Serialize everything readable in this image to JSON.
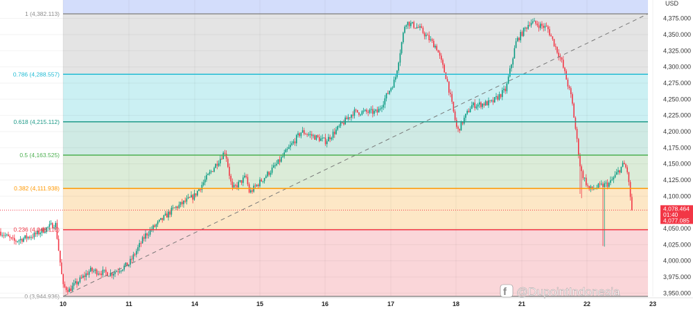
{
  "chart_data": {
    "type": "candlestick",
    "currency_label": "USD",
    "x_ticks": [
      "10",
      "11",
      "14",
      "15",
      "16",
      "17",
      "18",
      "21",
      "22",
      "23"
    ],
    "y_ticks": [
      "4,375.000",
      "4,350.000",
      "4,325.000",
      "4,300.000",
      "4,275.000",
      "4,250.000",
      "4,225.000",
      "4,200.000",
      "4,175.000",
      "4,150.000",
      "4,125.000",
      "4,100.000",
      "4,050.000",
      "4,025.000",
      "4,000.000",
      "3,975.000",
      "3,950.000"
    ],
    "y_tick_values": [
      4375,
      4350,
      4325,
      4300,
      4275,
      4250,
      4225,
      4200,
      4175,
      4150,
      4125,
      4100,
      4050,
      4025,
      4000,
      3975,
      3950
    ],
    "ylim": [
      3944.936,
      4382.113
    ],
    "grid": true,
    "approx_close_path": [
      [
        "9",
        4045
      ],
      [
        "9",
        4030
      ],
      [
        "9",
        4040
      ],
      [
        "9",
        4058
      ],
      [
        "10",
        3960
      ],
      [
        "10",
        3955
      ],
      [
        "10",
        3985
      ],
      [
        "10",
        3980
      ],
      [
        "11",
        3995
      ],
      [
        "11",
        4040
      ],
      [
        "11",
        4080
      ],
      [
        "14",
        4100
      ],
      [
        "14",
        4170
      ],
      [
        "14",
        4110
      ],
      [
        "14",
        4130
      ],
      [
        "14",
        4105
      ],
      [
        "15",
        4150
      ],
      [
        "15",
        4200
      ],
      [
        "16",
        4185
      ],
      [
        "16",
        4230
      ],
      [
        "16",
        4230
      ],
      [
        "17",
        4280
      ],
      [
        "17",
        4370
      ],
      [
        "17",
        4360
      ],
      [
        "17",
        4330
      ],
      [
        "17",
        4280
      ],
      [
        "18",
        4200
      ],
      [
        "18",
        4240
      ],
      [
        "18",
        4245
      ],
      [
        "18",
        4265
      ],
      [
        "18",
        4340
      ],
      [
        "21",
        4370
      ],
      [
        "21",
        4360
      ],
      [
        "21",
        4310
      ],
      [
        "21",
        4250
      ],
      [
        "21",
        4140
      ],
      [
        "22",
        4110
      ],
      [
        "22",
        4120
      ],
      [
        "22",
        4150
      ],
      [
        "22",
        4140
      ],
      [
        "22",
        4078
      ]
    ],
    "fibonacci": {
      "levels": [
        {
          "label": "1 (4,382.113)",
          "ratio": 1,
          "price": 4382.113,
          "color": "#8c8c8c",
          "fill": "#e4e4e4"
        },
        {
          "label": "0.786 (4,288.557)",
          "ratio": 0.786,
          "price": 4288.557,
          "color": "#22bcd4",
          "fill": "#cbf0f3"
        },
        {
          "label": "0.618 (4,215.112)",
          "ratio": 0.618,
          "price": 4215.112,
          "color": "#1e9a88",
          "fill": "#cfeae4"
        },
        {
          "label": "0.5 (4,163.525)",
          "ratio": 0.5,
          "price": 4163.525,
          "color": "#4caf50",
          "fill": "#dbecd8"
        },
        {
          "label": "0.382 (4,111.938)",
          "ratio": 0.382,
          "price": 4111.938,
          "color": "#ff9800",
          "fill": "#fde7c6"
        },
        {
          "label": "0.236 (4,048.110)",
          "ratio": 0.236,
          "price": 4048.11,
          "color": "#f23645",
          "fill": "#fad6d9"
        },
        {
          "label": "0 (3,944.936)",
          "ratio": 0,
          "price": 3944.936,
          "color": "#8c8c8c",
          "fill": "#fad6d9"
        }
      ],
      "above_fill": "#d3ddfb"
    },
    "last_price": {
      "price": "4,078.464",
      "countdown": "01:40",
      "second": "4,077.085",
      "color": "#f23645"
    },
    "colors": {
      "up": "#089981",
      "down": "#f23645"
    }
  },
  "watermark": "@DupointIndonesia"
}
